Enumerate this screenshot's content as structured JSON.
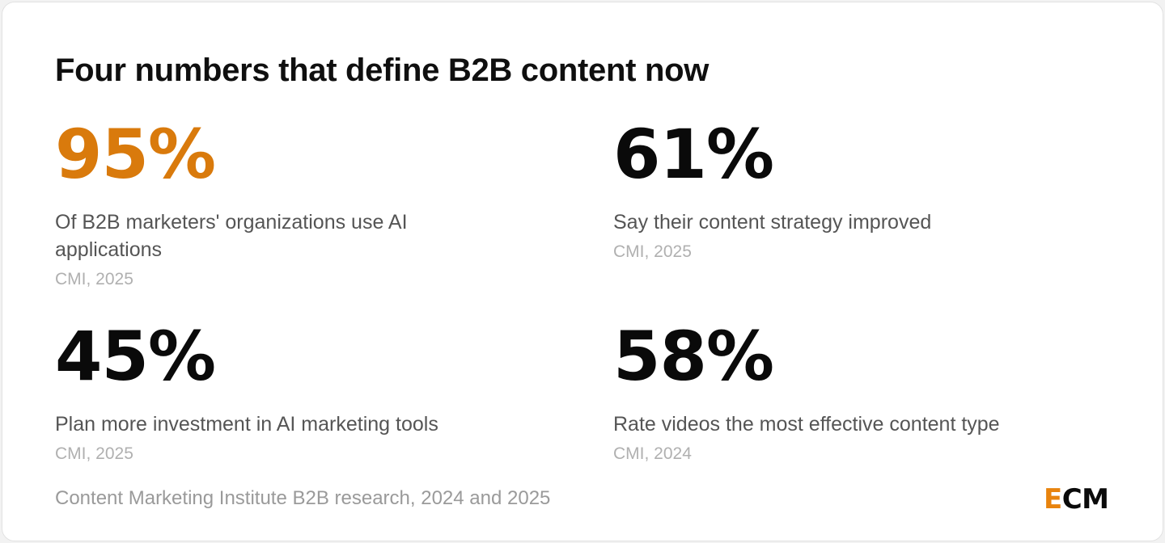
{
  "header": {
    "title": "Four numbers that define B2B content now"
  },
  "stats": [
    {
      "value": "95%",
      "description": "Of B2B marketers' organizations use AI applications",
      "source": "CMI, 2025"
    },
    {
      "value": "61%",
      "description": "Say their content strategy improved",
      "source": "CMI, 2025"
    },
    {
      "value": "45%",
      "description": "Plan more investment in AI marketing tools",
      "source": "CMI, 2025"
    },
    {
      "value": "58%",
      "description": "Rate videos the most effective content type",
      "source": "CMI, 2024"
    }
  ],
  "footer": {
    "source": "Content Marketing Institute B2B research, 2024 and 2025",
    "brand_first": "E",
    "brand_rest": "CM"
  },
  "colors": {
    "accent": "#d97a0c",
    "text": "#0a0a0a",
    "muted": "#555555",
    "faint": "#b0b0b0"
  }
}
